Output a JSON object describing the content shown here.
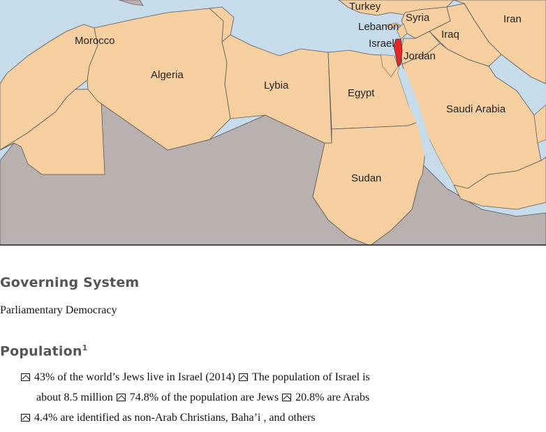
{
  "map": {
    "countries": {
      "turkey": "Turkey",
      "syria": "Syria",
      "iran": "Iran",
      "lebanon": "Lebanon",
      "iraq": "Iraq",
      "israel": "Israel",
      "jordan": "Jordan",
      "morocco": "Morocco",
      "algeria": "Algeria",
      "lybia": "Lybia",
      "egypt": "Egypt",
      "saudi_arabia": "Saudi Arabia",
      "sudan": "Sudan"
    },
    "colors": {
      "sea": "#c6dcea",
      "highlight_land": "#f6cfa1",
      "other_land": "#b9b1af",
      "israel": "#e8262a",
      "border": "#555555"
    }
  },
  "governing": {
    "heading": "Governing  System",
    "text": "Parliamentary Democracy"
  },
  "population": {
    "heading": "Population",
    "footnote": "1",
    "bullets": [
      "43% of the world’s Jews live in Israel (2014)",
      "The population of Israel is about 8.5 million",
      "74.8% of the population are Jews",
      "20.8% are Arabs",
      "4.4% are identified as non-Arab Christians, Baha’i , and others"
    ],
    "bullet_icon": "up-chevron-box-icon"
  }
}
